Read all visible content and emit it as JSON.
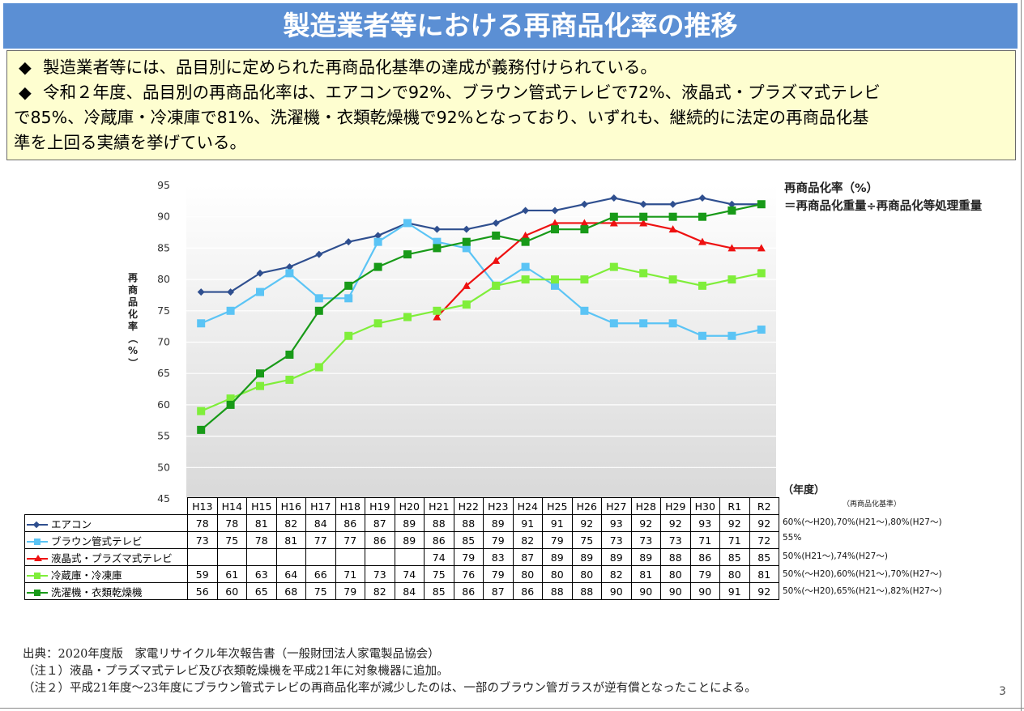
{
  "title": "製造業者等における再商品化率の推移",
  "summary": {
    "bullet": "◆",
    "line1": "製造業者等には、品目別に定められた再商品化基準の達成が義務付けられている。",
    "line2a": "令和２年度、品目別の再商品化率は、エアコンで92%、ブラウン管式テレビで72%、液晶式・プラズマ式テレビ",
    "line2b": "で85%、冷蔵庫・冷凍庫で81%、洗濯機・衣類乾燥機で92%となっており、いずれも、継続的に法定の再商品化基",
    "line2c": "準を上回る実績を挙げている。"
  },
  "formula": {
    "line1": "再商品化率（%）",
    "line2": "＝再商品化重量÷再商品化等処理重量"
  },
  "year_unit": "（年度）",
  "standard_header": "（再商品化基準）",
  "chart_data": {
    "type": "line",
    "ylabel": "再商品化率（%）",
    "ylim": [
      45,
      95
    ],
    "yticks": [
      45,
      50,
      55,
      60,
      65,
      70,
      75,
      80,
      85,
      90,
      95
    ],
    "categories": [
      "H13",
      "H14",
      "H15",
      "H16",
      "H17",
      "H18",
      "H19",
      "H20",
      "H21",
      "H22",
      "H23",
      "H24",
      "H25",
      "H26",
      "H27",
      "H28",
      "H29",
      "H30",
      "R1",
      "R2"
    ],
    "series": [
      {
        "name": "エアコン",
        "color": "#2f4f8f",
        "marker": "diamond",
        "values": [
          78,
          78,
          81,
          82,
          84,
          86,
          87,
          89,
          88,
          88,
          89,
          91,
          91,
          92,
          93,
          92,
          92,
          93,
          92,
          92
        ],
        "standard": "60%(～H20),70%(H21～),80%(H27～)"
      },
      {
        "name": "ブラウン管式テレビ",
        "color": "#5bc4f5",
        "marker": "square",
        "values": [
          73,
          75,
          78,
          81,
          77,
          77,
          86,
          89,
          86,
          85,
          79,
          82,
          79,
          75,
          73,
          73,
          73,
          71,
          71,
          72
        ],
        "standard": "55%"
      },
      {
        "name": "液晶式・プラズマ式テレビ",
        "color": "#ee1111",
        "marker": "triangle",
        "values": [
          null,
          null,
          null,
          null,
          null,
          null,
          null,
          null,
          74,
          79,
          83,
          87,
          89,
          89,
          89,
          89,
          88,
          86,
          85,
          85
        ],
        "standard": "50%(H21～),74%(H27～)"
      },
      {
        "name": "冷蔵庫・冷凍庫",
        "color": "#7fee3a",
        "marker": "square",
        "values": [
          59,
          61,
          63,
          64,
          66,
          71,
          73,
          74,
          75,
          76,
          79,
          80,
          80,
          80,
          82,
          81,
          80,
          79,
          80,
          81
        ],
        "standard": "50%(～H20),60%(H21～),70%(H27～)"
      },
      {
        "name": "洗濯機・衣類乾燥機",
        "color": "#189a18",
        "marker": "square",
        "values": [
          56,
          60,
          65,
          68,
          75,
          79,
          82,
          84,
          85,
          86,
          87,
          86,
          88,
          88,
          90,
          90,
          90,
          90,
          91,
          92
        ],
        "standard": "50%(～H20),65%(H21～),82%(H27～)"
      }
    ]
  },
  "notes": {
    "source": "出典：2020年度版　家電リサイクル年次報告書（一般財団法人家電製品協会）",
    "note1": "（注１）液晶・プラズマ式テレビ及び衣類乾燥機を平成21年に対象機器に追加。",
    "note2": "（注２）平成21年度～23年度にブラウン管式テレビの再商品化率が減少したのは、一部のブラウン管ガラスが逆有償となったことによる。"
  },
  "page_number": "3"
}
